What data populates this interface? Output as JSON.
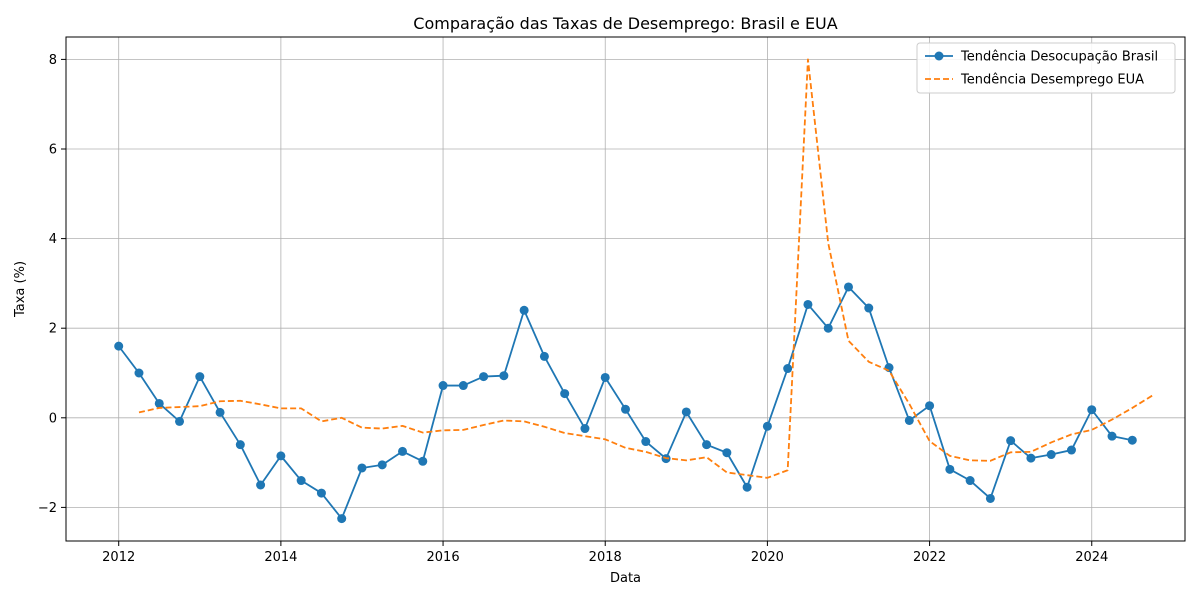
{
  "chart_data": {
    "type": "line",
    "title": "Comparação das Taxas de Desemprego: Brasil e EUA",
    "xlabel": "Data",
    "ylabel": "Taxa (%)",
    "xlim": [
      2011.35,
      2025.15
    ],
    "ylim": [
      -2.75,
      8.5
    ],
    "x_ticks": [
      2012,
      2014,
      2016,
      2018,
      2020,
      2022,
      2024
    ],
    "y_ticks": [
      -2,
      0,
      2,
      4,
      6,
      8
    ],
    "grid": true,
    "legend_position": "top-right",
    "series": [
      {
        "name": "Tendência Desocupação Brasil",
        "color": "#1f77b4",
        "style": "solid-with-markers",
        "points": [
          [
            2012.0,
            1.6
          ],
          [
            2012.25,
            1.0
          ],
          [
            2012.5,
            0.32
          ],
          [
            2012.75,
            -0.08
          ],
          [
            2013.0,
            0.92
          ],
          [
            2013.25,
            0.12
          ],
          [
            2013.5,
            -0.6
          ],
          [
            2013.75,
            -1.5
          ],
          [
            2014.0,
            -0.85
          ],
          [
            2014.25,
            -1.4
          ],
          [
            2014.5,
            -1.68
          ],
          [
            2014.75,
            -2.25
          ],
          [
            2015.0,
            -1.12
          ],
          [
            2015.25,
            -1.05
          ],
          [
            2015.5,
            -0.75
          ],
          [
            2015.75,
            -0.97
          ],
          [
            2016.0,
            0.72
          ],
          [
            2016.25,
            0.72
          ],
          [
            2016.5,
            0.92
          ],
          [
            2016.75,
            0.94
          ],
          [
            2017.0,
            2.4
          ],
          [
            2017.25,
            1.37
          ],
          [
            2017.5,
            0.54
          ],
          [
            2017.75,
            -0.24
          ],
          [
            2018.0,
            0.9
          ],
          [
            2018.25,
            0.19
          ],
          [
            2018.5,
            -0.53
          ],
          [
            2018.75,
            -0.91
          ],
          [
            2019.0,
            0.13
          ],
          [
            2019.25,
            -0.6
          ],
          [
            2019.5,
            -0.78
          ],
          [
            2019.75,
            -1.55
          ],
          [
            2020.0,
            -0.19
          ],
          [
            2020.25,
            1.1
          ],
          [
            2020.5,
            2.53
          ],
          [
            2020.75,
            2.0
          ],
          [
            2021.0,
            2.92
          ],
          [
            2021.25,
            2.45
          ],
          [
            2021.5,
            1.12
          ],
          [
            2021.75,
            -0.06
          ],
          [
            2022.0,
            0.27
          ],
          [
            2022.25,
            -1.15
          ],
          [
            2022.5,
            -1.4
          ],
          [
            2022.75,
            -1.8
          ],
          [
            2023.0,
            -0.51
          ],
          [
            2023.25,
            -0.9
          ],
          [
            2023.5,
            -0.82
          ],
          [
            2023.75,
            -0.72
          ],
          [
            2024.0,
            0.18
          ],
          [
            2024.25,
            -0.41
          ],
          [
            2024.5,
            -0.5
          ]
        ]
      },
      {
        "name": "Tendência Desemprego EUA",
        "color": "#ff7f0e",
        "style": "dashed",
        "points": [
          [
            2012.25,
            0.12
          ],
          [
            2012.5,
            0.22
          ],
          [
            2012.75,
            0.24
          ],
          [
            2013.0,
            0.26
          ],
          [
            2013.25,
            0.37
          ],
          [
            2013.5,
            0.38
          ],
          [
            2013.75,
            0.3
          ],
          [
            2014.0,
            0.21
          ],
          [
            2014.25,
            0.21
          ],
          [
            2014.5,
            -0.08
          ],
          [
            2014.75,
            0.0
          ],
          [
            2015.0,
            -0.22
          ],
          [
            2015.25,
            -0.24
          ],
          [
            2015.5,
            -0.18
          ],
          [
            2015.75,
            -0.33
          ],
          [
            2016.0,
            -0.28
          ],
          [
            2016.25,
            -0.27
          ],
          [
            2016.5,
            -0.16
          ],
          [
            2016.75,
            -0.06
          ],
          [
            2017.0,
            -0.08
          ],
          [
            2017.25,
            -0.2
          ],
          [
            2017.5,
            -0.34
          ],
          [
            2017.75,
            -0.41
          ],
          [
            2018.0,
            -0.48
          ],
          [
            2018.25,
            -0.67
          ],
          [
            2018.5,
            -0.76
          ],
          [
            2018.75,
            -0.9
          ],
          [
            2019.0,
            -0.95
          ],
          [
            2019.25,
            -0.88
          ],
          [
            2019.5,
            -1.22
          ],
          [
            2019.75,
            -1.28
          ],
          [
            2020.0,
            -1.34
          ],
          [
            2020.25,
            -1.17
          ],
          [
            2020.5,
            8.0
          ],
          [
            2020.75,
            3.9
          ],
          [
            2021.0,
            1.72
          ],
          [
            2021.25,
            1.25
          ],
          [
            2021.5,
            1.05
          ],
          [
            2021.75,
            0.31
          ],
          [
            2022.0,
            -0.52
          ],
          [
            2022.25,
            -0.85
          ],
          [
            2022.5,
            -0.95
          ],
          [
            2022.75,
            -0.96
          ],
          [
            2023.0,
            -0.77
          ],
          [
            2023.25,
            -0.76
          ],
          [
            2023.5,
            -0.55
          ],
          [
            2023.75,
            -0.37
          ],
          [
            2024.0,
            -0.27
          ],
          [
            2024.25,
            -0.04
          ],
          [
            2024.5,
            0.22
          ],
          [
            2024.75,
            0.5
          ]
        ]
      }
    ]
  }
}
